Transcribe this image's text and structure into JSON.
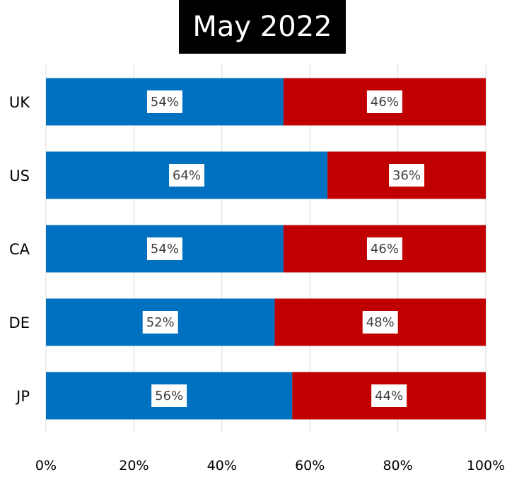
{
  "chart_data": {
    "type": "bar",
    "orientation": "horizontal",
    "stacked": "percent",
    "title": "May 2022",
    "categories": [
      "UK",
      "US",
      "CA",
      "DE",
      "JP"
    ],
    "series": [
      {
        "values": [
          54,
          64,
          54,
          52,
          56
        ],
        "color": "#0070c0"
      },
      {
        "values": [
          46,
          36,
          46,
          48,
          44
        ],
        "color": "#c00000"
      }
    ],
    "data_labels": [
      [
        "54%",
        "46%"
      ],
      [
        "64%",
        "36%"
      ],
      [
        "54%",
        "46%"
      ],
      [
        "52%",
        "48%"
      ],
      [
        "56%",
        "44%"
      ]
    ],
    "x_ticks": [
      "0%",
      "20%",
      "40%",
      "60%",
      "80%",
      "100%"
    ],
    "xlim": [
      0,
      100
    ],
    "grid": "vertical",
    "legend": "none"
  }
}
